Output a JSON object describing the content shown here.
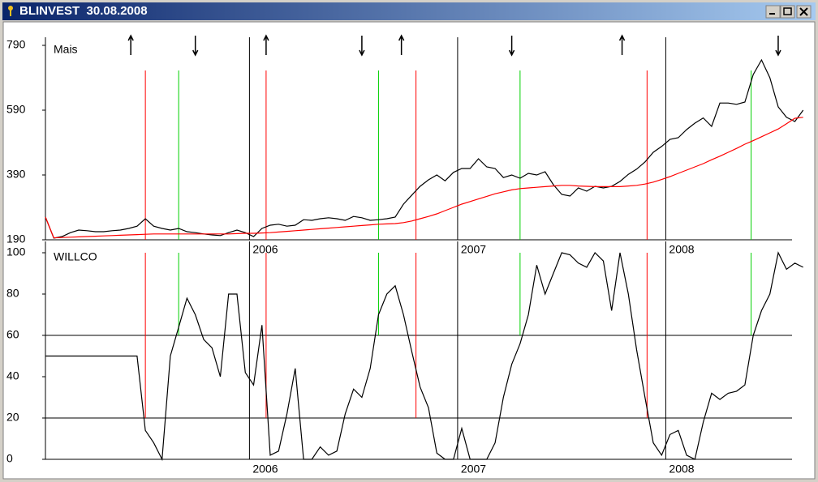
{
  "window": {
    "title": "BLINVEST  30.08.2008"
  },
  "chart_data": [
    {
      "type": "line",
      "title": "Mais",
      "x": [
        2005.02,
        2005.06,
        2005.1,
        2005.14,
        2005.18,
        2005.22,
        2005.26,
        2005.3,
        2005.34,
        2005.38,
        2005.42,
        2005.46,
        2005.5,
        2005.54,
        2005.58,
        2005.62,
        2005.66,
        2005.7,
        2005.74,
        2005.78,
        2005.82,
        2005.86,
        2005.9,
        2005.94,
        2005.98,
        2006.02,
        2006.06,
        2006.1,
        2006.14,
        2006.18,
        2006.22,
        2006.26,
        2006.3,
        2006.34,
        2006.38,
        2006.42,
        2006.46,
        2006.5,
        2006.54,
        2006.58,
        2006.62,
        2006.66,
        2006.7,
        2006.74,
        2006.78,
        2006.82,
        2006.86,
        2006.9,
        2006.94,
        2006.98,
        2007.02,
        2007.06,
        2007.1,
        2007.14,
        2007.18,
        2007.22,
        2007.26,
        2007.3,
        2007.34,
        2007.38,
        2007.42,
        2007.46,
        2007.5,
        2007.54,
        2007.58,
        2007.62,
        2007.66,
        2007.7,
        2007.74,
        2007.78,
        2007.82,
        2007.86,
        2007.9,
        2007.94,
        2007.98,
        2008.02,
        2008.06,
        2008.1,
        2008.14,
        2008.18,
        2008.22,
        2008.26,
        2008.3,
        2008.34,
        2008.38,
        2008.42,
        2008.46,
        2008.5,
        2008.54,
        2008.58,
        2008.62,
        2008.66
      ],
      "series": [
        {
          "color": "#000000",
          "values": [
            260,
            195,
            200,
            212,
            220,
            218,
            215,
            215,
            218,
            220,
            225,
            232,
            255,
            232,
            225,
            220,
            225,
            215,
            212,
            208,
            205,
            203,
            212,
            220,
            212,
            200,
            225,
            235,
            238,
            232,
            235,
            252,
            250,
            255,
            258,
            255,
            250,
            262,
            258,
            250,
            252,
            255,
            260,
            300,
            328,
            355,
            375,
            390,
            372,
            398,
            410,
            410,
            440,
            415,
            410,
            382,
            390,
            380,
            395,
            390,
            400,
            360,
            330,
            325,
            350,
            340,
            355,
            350,
            355,
            370,
            392,
            408,
            430,
            460,
            478,
            500,
            505,
            530,
            550,
            566,
            540,
            612,
            612,
            608,
            615,
            700,
            745,
            690,
            600,
            568,
            555,
            590
          ]
        },
        {
          "color": "#ff0000",
          "values": [
            260,
            196,
            197,
            198,
            199,
            200,
            201,
            202,
            203,
            204,
            205,
            206,
            207,
            208,
            208,
            208,
            208,
            208,
            208,
            208,
            208,
            208,
            208,
            209,
            210,
            210,
            211,
            212,
            214,
            216,
            218,
            220,
            222,
            224,
            226,
            228,
            230,
            232,
            234,
            236,
            238,
            239,
            240,
            243,
            248,
            255,
            262,
            270,
            280,
            290,
            300,
            308,
            316,
            324,
            332,
            338,
            344,
            348,
            350,
            352,
            354,
            356,
            358,
            358,
            356,
            355,
            354,
            354,
            354,
            354,
            356,
            358,
            362,
            368,
            376,
            385,
            395,
            405,
            415,
            425,
            437,
            448,
            460,
            472,
            485,
            496,
            508,
            520,
            532,
            548,
            565,
            568
          ]
        }
      ],
      "xlim": [
        2005.02,
        2008.7
      ],
      "xticks": [
        2006,
        2007,
        2008
      ],
      "ylim": [
        190,
        790
      ],
      "yticks": [
        190,
        390,
        590,
        790
      ],
      "signal_lines": [
        {
          "color": "#ff0000",
          "x": [
            2005.5,
            2006.08,
            2006.8,
            2007.91
          ]
        },
        {
          "color": "#00d000",
          "x": [
            2005.66,
            2006.62,
            2007.3,
            2008.41
          ]
        }
      ],
      "arrows": {
        "up": [
          2005.43,
          2006.08,
          2006.73,
          2007.79
        ],
        "down": [
          2005.74,
          2006.54,
          2007.26,
          2008.54
        ]
      }
    },
    {
      "type": "line",
      "title": "WILLCO",
      "x": [
        2005.02,
        2005.06,
        2005.1,
        2005.14,
        2005.18,
        2005.22,
        2005.26,
        2005.3,
        2005.34,
        2005.38,
        2005.42,
        2005.46,
        2005.5,
        2005.54,
        2005.58,
        2005.62,
        2005.66,
        2005.7,
        2005.74,
        2005.78,
        2005.82,
        2005.86,
        2005.9,
        2005.94,
        2005.98,
        2006.02,
        2006.06,
        2006.1,
        2006.14,
        2006.18,
        2006.22,
        2006.26,
        2006.3,
        2006.34,
        2006.38,
        2006.42,
        2006.46,
        2006.5,
        2006.54,
        2006.58,
        2006.62,
        2006.66,
        2006.7,
        2006.74,
        2006.78,
        2006.82,
        2006.86,
        2006.9,
        2006.94,
        2006.98,
        2007.02,
        2007.06,
        2007.1,
        2007.14,
        2007.18,
        2007.22,
        2007.26,
        2007.3,
        2007.34,
        2007.38,
        2007.42,
        2007.46,
        2007.5,
        2007.54,
        2007.58,
        2007.62,
        2007.66,
        2007.7,
        2007.74,
        2007.78,
        2007.82,
        2007.86,
        2007.9,
        2007.94,
        2007.98,
        2008.02,
        2008.06,
        2008.1,
        2008.14,
        2008.18,
        2008.22,
        2008.26,
        2008.3,
        2008.34,
        2008.38,
        2008.42,
        2008.46,
        2008.5,
        2008.54,
        2008.58,
        2008.62,
        2008.66
      ],
      "series": [
        {
          "color": "#000000",
          "values": [
            50,
            50,
            50,
            50,
            50,
            50,
            50,
            50,
            50,
            50,
            50,
            50,
            14,
            8,
            0,
            50,
            64,
            78,
            70,
            58,
            54,
            40,
            80,
            80,
            42,
            36,
            65,
            2,
            4,
            22,
            44,
            0,
            0,
            6,
            2,
            4,
            22,
            34,
            30,
            44,
            70,
            80,
            84,
            70,
            52,
            35,
            25,
            3,
            0,
            0,
            15,
            0,
            0,
            0,
            8,
            30,
            46,
            56,
            70,
            94,
            80,
            90,
            100,
            99,
            95,
            93,
            100,
            96,
            72,
            100,
            80,
            53,
            30,
            8,
            2,
            12,
            14,
            2,
            0,
            18,
            32,
            29,
            32,
            33,
            36,
            60,
            72,
            80,
            100,
            92,
            95,
            93
          ]
        }
      ],
      "xlim": [
        2005.02,
        2008.7
      ],
      "xticks": [
        2006,
        2007,
        2008
      ],
      "ylim": [
        0,
        100
      ],
      "yticks": [
        0,
        20,
        40,
        60,
        80,
        100
      ],
      "hlines": [
        20,
        60
      ]
    }
  ]
}
